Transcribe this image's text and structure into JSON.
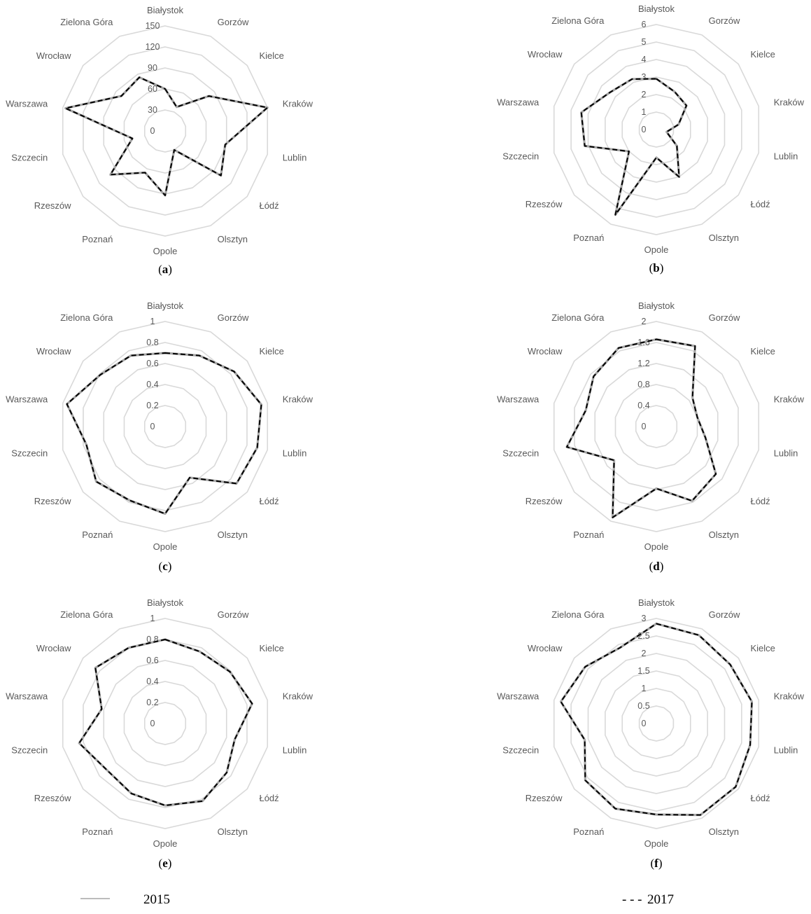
{
  "colors": {
    "grid": "#d9d9d9",
    "series_2015": "#a6a6a6",
    "series_2017": "#000000",
    "text": "#595959"
  },
  "legend": [
    {
      "name": "2015",
      "symbol": "———"
    },
    {
      "name": "2017",
      "symbol": "- - -"
    }
  ],
  "chart_data": [
    {
      "type": "radar",
      "panel_label": "a",
      "categories": [
        "Białystok",
        "Gorzów",
        "Kielce",
        "Kraków",
        "Lublin",
        "Łódź",
        "Olsztyn",
        "Opole",
        "Poznań",
        "Rzeszów",
        "Szczecin",
        "Warszawa",
        "Wrocław",
        "Zielona Góra"
      ],
      "ticks": [
        "0",
        "30",
        "60",
        "90",
        "120",
        "150"
      ],
      "rmax": 150,
      "series": [
        {
          "name": "2015",
          "values": [
            60,
            38,
            80,
            150,
            88,
            102,
            30,
            92,
            66,
            100,
            48,
            146,
            80,
            85
          ]
        },
        {
          "name": "2017",
          "values": [
            60,
            38,
            80,
            150,
            88,
            102,
            30,
            92,
            66,
            100,
            48,
            146,
            80,
            85
          ]
        }
      ]
    },
    {
      "type": "radar",
      "panel_label": "b",
      "categories": [
        "Białystok",
        "Gorzów",
        "Kielce",
        "Kraków",
        "Lublin",
        "Łódź",
        "Olsztyn",
        "Opole",
        "Poznań",
        "Rzeszów",
        "Szczecin",
        "Warszawa",
        "Wrocław",
        "Zielona Góra"
      ],
      "ticks": [
        "0",
        "1",
        "2",
        "3",
        "4",
        "5",
        "6"
      ],
      "rmax": 6,
      "series": [
        {
          "name": "2015",
          "values": [
            2.9,
            2.4,
            2.2,
            1.3,
            0.6,
            1.5,
            3.0,
            1.6,
            5.4,
            2.0,
            4.2,
            4.4,
            3.4,
            3.2
          ]
        },
        {
          "name": "2017",
          "values": [
            2.9,
            2.4,
            2.2,
            1.3,
            0.6,
            1.5,
            3.0,
            1.6,
            5.4,
            2.0,
            4.2,
            4.4,
            3.4,
            3.2
          ]
        }
      ]
    },
    {
      "type": "radar",
      "panel_label": "c",
      "categories": [
        "Białystok",
        "Gorzów",
        "Kielce",
        "Kraków",
        "Lublin",
        "Łódź",
        "Olsztyn",
        "Opole",
        "Poznań",
        "Rzeszów",
        "Szczecin",
        "Warszawa",
        "Wrocław",
        "Zielona Góra"
      ],
      "ticks": [
        "0",
        "0.2",
        "0.4",
        "0.6",
        "0.8",
        "1"
      ],
      "rmax": 1,
      "series": [
        {
          "name": "2015",
          "values": [
            0.7,
            0.75,
            0.84,
            0.94,
            0.9,
            0.87,
            0.54,
            0.83,
            0.78,
            0.84,
            0.77,
            0.96,
            0.79,
            0.75
          ]
        },
        {
          "name": "2017",
          "values": [
            0.7,
            0.75,
            0.84,
            0.94,
            0.9,
            0.87,
            0.54,
            0.83,
            0.78,
            0.84,
            0.77,
            0.96,
            0.79,
            0.75
          ]
        }
      ]
    },
    {
      "type": "radar",
      "panel_label": "d",
      "categories": [
        "Białystok",
        "Gorzów",
        "Kielce",
        "Kraków",
        "Lublin",
        "Łódź",
        "Olsztyn",
        "Opole",
        "Poznań",
        "Rzeszów",
        "Szczecin",
        "Warszawa",
        "Wrocław",
        "Zielona Góra"
      ],
      "ticks": [
        "0",
        "0.4",
        "0.8",
        "1.2",
        "1.6",
        "2"
      ],
      "rmax": 2,
      "series": [
        {
          "name": "2015",
          "values": [
            1.66,
            1.7,
            0.88,
            0.8,
            0.96,
            1.45,
            1.57,
            1.18,
            1.92,
            1.03,
            1.75,
            1.38,
            1.53,
            1.66
          ]
        },
        {
          "name": "2017",
          "values": [
            1.66,
            1.7,
            0.88,
            0.8,
            0.96,
            1.45,
            1.57,
            1.18,
            1.92,
            1.03,
            1.75,
            1.38,
            1.53,
            1.66
          ]
        }
      ]
    },
    {
      "type": "radar",
      "panel_label": "e",
      "categories": [
        "Białystok",
        "Gorzów",
        "Kielce",
        "Kraków",
        "Lublin",
        "Łódź",
        "Olsztyn",
        "Opole",
        "Poznań",
        "Rzeszów",
        "Szczecin",
        "Warszawa",
        "Wrocław",
        "Zielona Góra"
      ],
      "ticks": [
        "0",
        "0.2",
        "0.4",
        "0.6",
        "0.8",
        "1"
      ],
      "rmax": 1,
      "series": [
        {
          "name": "2015",
          "values": [
            0.8,
            0.76,
            0.79,
            0.85,
            0.68,
            0.75,
            0.82,
            0.78,
            0.74,
            0.71,
            0.84,
            0.62,
            0.85,
            0.8
          ]
        },
        {
          "name": "2017",
          "values": [
            0.8,
            0.76,
            0.79,
            0.85,
            0.68,
            0.75,
            0.82,
            0.78,
            0.74,
            0.71,
            0.84,
            0.62,
            0.85,
            0.8
          ]
        }
      ]
    },
    {
      "type": "radar",
      "panel_label": "f",
      "categories": [
        "Białystok",
        "Gorzów",
        "Kielce",
        "Kraków",
        "Lublin",
        "Łódź",
        "Olsztyn",
        "Opole",
        "Poznań",
        "Rzeszów",
        "Szczecin",
        "Warszawa",
        "Wrocław",
        "Zielona Góra"
      ],
      "ticks": [
        "0",
        "0.5",
        "1",
        "1.5",
        "2",
        "2.5",
        "3"
      ],
      "rmax": 3,
      "series": [
        {
          "name": "2015",
          "values": [
            2.85,
            2.8,
            2.7,
            2.8,
            2.75,
            2.9,
            2.9,
            2.6,
            2.7,
            2.6,
            2.1,
            2.8,
            2.6,
            2.4
          ]
        },
        {
          "name": "2017",
          "values": [
            2.85,
            2.8,
            2.7,
            2.8,
            2.75,
            2.9,
            2.9,
            2.6,
            2.7,
            2.6,
            2.1,
            2.8,
            2.6,
            2.4
          ]
        }
      ]
    }
  ]
}
